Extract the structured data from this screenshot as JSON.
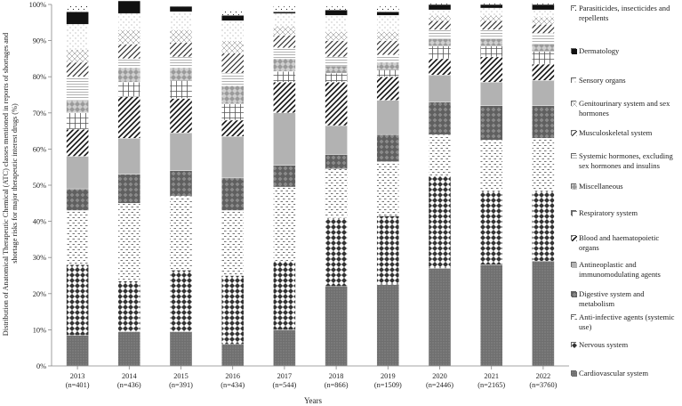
{
  "chart_data": {
    "type": "bar",
    "stacked": true,
    "title": "",
    "xlabel": "Years",
    "ylabel": "Distribution of Anatomical Therapeutic Chemical (ATC) classes mentioned in reports of shortages and shortage risks for major therapeutic interest drugs (%)",
    "ylim": [
      0,
      100
    ],
    "yticks": [
      "0%",
      "10%",
      "20%",
      "30%",
      "40%",
      "50%",
      "60%",
      "70%",
      "80%",
      "90%",
      "100%"
    ],
    "categories": [
      "2013",
      "2014",
      "2015",
      "2016",
      "2017",
      "2018",
      "2019",
      "2020",
      "2021",
      "2022"
    ],
    "category_counts": [
      "(n=401)",
      "(n=436)",
      "(n=391)",
      "(n=434)",
      "(n=544)",
      "(n=866)",
      "(n=1509)",
      "(n=2446)",
      "(n=2165)",
      "(n=3760)"
    ],
    "legend_position": "right",
    "series": [
      {
        "name": "Cardiovascular system",
        "values": [
          8.5,
          9.5,
          9.5,
          6.0,
          10.0,
          22.0,
          22.5,
          27.0,
          28.0,
          29.0
        ]
      },
      {
        "name": "Nervous system",
        "values": [
          19.5,
          14.0,
          17.0,
          19.0,
          19.0,
          19.0,
          19.0,
          25.5,
          20.5,
          19.5
        ]
      },
      {
        "name": "Anti-infective agents (systemic use)",
        "values": [
          15.0,
          21.5,
          20.5,
          18.0,
          20.5,
          13.5,
          15.0,
          11.5,
          14.0,
          14.5
        ]
      },
      {
        "name": "Digestive system and metabolism",
        "values": [
          6.0,
          8.0,
          7.0,
          9.0,
          6.0,
          4.0,
          7.5,
          9.0,
          9.5,
          9.0
        ]
      },
      {
        "name": "Antineoplastic  and immunomodulating agents",
        "values": [
          9.0,
          10.0,
          10.5,
          11.5,
          14.5,
          8.0,
          9.5,
          7.5,
          6.5,
          7.0
        ]
      },
      {
        "name": "Blood and haematopoietic organs",
        "values": [
          7.5,
          11.5,
          9.5,
          4.5,
          8.5,
          12.0,
          6.5,
          4.5,
          7.0,
          4.5
        ]
      },
      {
        "name": "Respiratory system",
        "values": [
          4.5,
          4.0,
          5.0,
          4.5,
          3.0,
          2.5,
          2.0,
          3.5,
          3.0,
          3.5
        ]
      },
      {
        "name": "Miscellaneous",
        "values": [
          3.5,
          4.0,
          3.5,
          5.0,
          3.5,
          2.0,
          2.0,
          2.0,
          2.0,
          2.0
        ]
      },
      {
        "name": "Systemic hormones, excluding sex hormones and insulins",
        "values": [
          6.5,
          2.5,
          3.0,
          3.5,
          3.0,
          2.5,
          2.0,
          2.5,
          2.5,
          3.0
        ]
      },
      {
        "name": "Musculoskeletal system",
        "values": [
          4.0,
          4.0,
          4.0,
          5.5,
          3.5,
          4.5,
          4.0,
          2.5,
          2.5,
          2.5
        ]
      },
      {
        "name": "Genitourinary system and sex hormones",
        "values": [
          3.5,
          4.0,
          3.5,
          3.5,
          2.5,
          2.5,
          2.5,
          1.5,
          1.5,
          2.0
        ]
      },
      {
        "name": "Sensory organs",
        "values": [
          7.0,
          4.5,
          5.0,
          5.5,
          3.5,
          4.5,
          4.5,
          1.5,
          2.0,
          2.0
        ]
      },
      {
        "name": "Dermatology",
        "values": [
          3.5,
          3.5,
          1.5,
          1.5,
          0.5,
          1.5,
          1.0,
          1.5,
          1.0,
          1.5
        ]
      },
      {
        "name": "Parasiticides, insecticides and repellents",
        "values": [
          2.0,
          1.0,
          0.5,
          1.5,
          1.5,
          1.0,
          1.5,
          0.5,
          0.5,
          0.5
        ]
      }
    ]
  }
}
